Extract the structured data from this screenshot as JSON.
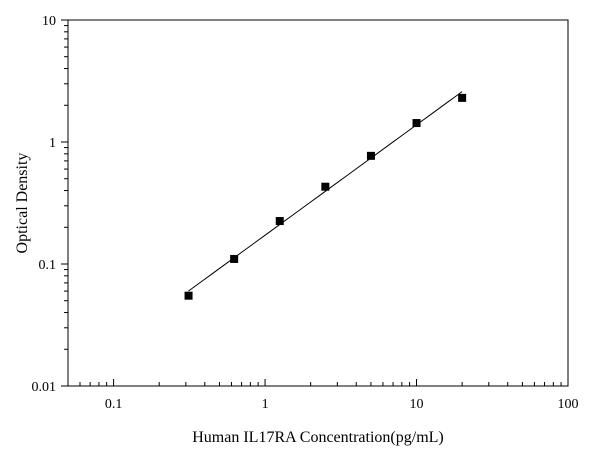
{
  "chart_data": {
    "type": "scatter",
    "title": "",
    "xlabel": "Human IL17RA Concentration(pg/mL)",
    "ylabel": "Optical Density",
    "x_scale": "log",
    "y_scale": "log",
    "xlim": [
      0.05,
      100
    ],
    "ylim": [
      0.01,
      10
    ],
    "x_ticks": [
      0.1,
      1,
      10,
      100
    ],
    "x_tick_labels": [
      "0.1",
      "1",
      "10",
      "100"
    ],
    "y_ticks": [
      0.01,
      0.1,
      1,
      10
    ],
    "y_tick_labels": [
      "0.01",
      "0.1",
      "1",
      "10"
    ],
    "grid": false,
    "legend": false,
    "series": [
      {
        "x": [
          0.3125,
          0.625,
          1.25,
          2.5,
          5,
          10,
          20
        ],
        "y": [
          0.055,
          0.11,
          0.225,
          0.43,
          0.77,
          1.43,
          2.3
        ],
        "marker": "square",
        "color": "#000000",
        "fit_line": true
      }
    ]
  }
}
